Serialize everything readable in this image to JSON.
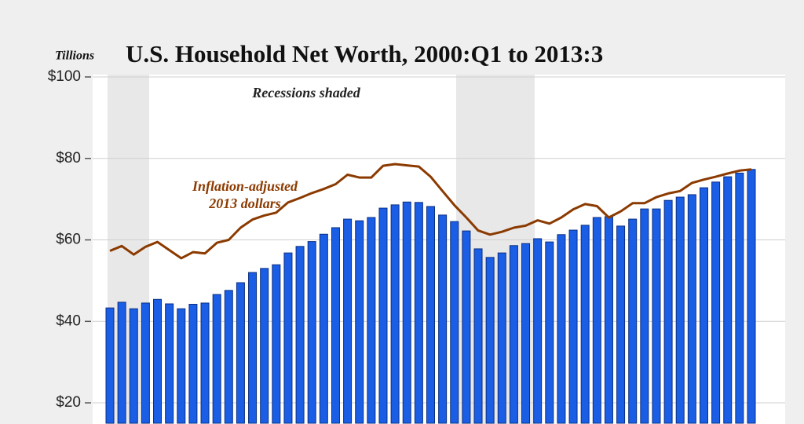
{
  "chart_data": {
    "type": "bar",
    "title": "U.S. Household Net Worth, 2000:Q1 to 2013:3",
    "y_label": "Tillions",
    "annotations": [
      "Recessions shaded",
      "Inflation-adjusted",
      "2013 dollars"
    ],
    "categories": [
      null,
      null,
      null,
      null,
      null,
      null,
      null,
      null,
      null,
      null,
      null,
      null,
      null,
      null,
      null,
      null,
      null,
      null,
      null,
      null,
      null,
      null,
      null,
      null,
      null,
      null,
      null,
      null,
      null,
      null,
      null,
      null,
      null,
      null,
      null,
      null,
      null,
      null,
      null,
      null,
      null,
      null,
      null,
      null,
      null,
      null,
      null,
      null,
      null,
      null,
      null,
      null,
      null,
      null,
      null
    ],
    "series": [
      {
        "type": "bar",
        "color": "#1a5ee6",
        "values": [
          43.3,
          44.7,
          43.1,
          44.5,
          45.4,
          44.3,
          43.1,
          44.2,
          44.5,
          46.6,
          47.6,
          49.5,
          52.0,
          53.0,
          53.9,
          56.8,
          58.4,
          59.6,
          61.4,
          63.0,
          65.1,
          64.7,
          65.5,
          67.8,
          68.6,
          69.3,
          69.2,
          68.2,
          66.1,
          64.5,
          62.2,
          57.8,
          55.7,
          56.8,
          58.6,
          59.1,
          60.3,
          59.5,
          61.3,
          62.4,
          63.6,
          65.5,
          65.7,
          63.4,
          65.1,
          67.6,
          67.6,
          69.7,
          70.5,
          71.1,
          72.8,
          74.2,
          75.5,
          76.4,
          77.3
        ]
      },
      {
        "type": "line",
        "color": "#8b3a00",
        "values": [
          57.3,
          58.5,
          56.4,
          58.3,
          59.5,
          57.5,
          55.5,
          57.0,
          56.7,
          59.3,
          60.0,
          63.0,
          65.0,
          66.0,
          66.7,
          69.2,
          70.3,
          71.5,
          72.5,
          73.7,
          76.0,
          75.3,
          75.3,
          78.2,
          78.6,
          78.3,
          78.0,
          75.5,
          72.0,
          68.5,
          65.5,
          62.3,
          61.3,
          62.0,
          63.0,
          63.5,
          64.8,
          64.0,
          65.5,
          67.5,
          68.8,
          68.3,
          65.5,
          67.0,
          69.0,
          69.0,
          70.5,
          71.4,
          72.0,
          74.0,
          74.8,
          75.5,
          76.3,
          77.0,
          77.3
        ]
      }
    ],
    "ylim": [
      15,
      100
    ],
    "yticks": [
      {
        "value": 20,
        "label": "$20"
      },
      {
        "value": 40,
        "label": "$40"
      },
      {
        "value": 60,
        "label": "$60"
      },
      {
        "value": 80,
        "label": "$80"
      },
      {
        "value": 100,
        "label": "$100"
      }
    ],
    "grid": true
  }
}
